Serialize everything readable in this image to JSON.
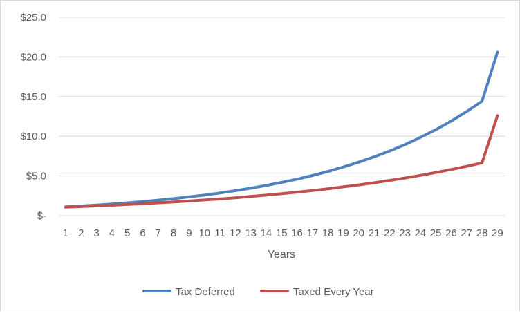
{
  "chart_data": {
    "type": "line",
    "xlabel": "Years",
    "ylabel": "",
    "title": "",
    "ylim": [
      0,
      25
    ],
    "yticks": [
      {
        "value": 0,
        "label": "$-"
      },
      {
        "value": 5,
        "label": "$5.0"
      },
      {
        "value": 10,
        "label": "$10.0"
      },
      {
        "value": 15,
        "label": "$15.0"
      },
      {
        "value": 20,
        "label": "$20.0"
      },
      {
        "value": 25,
        "label": "$25.0"
      }
    ],
    "x": [
      "1",
      "2",
      "3",
      "4",
      "5",
      "6",
      "7",
      "8",
      "9",
      "10",
      "11",
      "12",
      "13",
      "14",
      "15",
      "16",
      "17",
      "18",
      "19",
      "20",
      "21",
      "22",
      "23",
      "24",
      "25",
      "26",
      "27",
      "28",
      "29"
    ],
    "grid": "horizontal",
    "legend_position": "bottom",
    "series": [
      {
        "name": "Tax Deferred",
        "color": "#4f81bd",
        "values": [
          1.1,
          1.21,
          1.33,
          1.46,
          1.61,
          1.77,
          1.95,
          2.14,
          2.36,
          2.59,
          2.85,
          3.14,
          3.45,
          3.8,
          4.18,
          4.59,
          5.05,
          5.56,
          6.12,
          6.73,
          7.4,
          8.14,
          8.95,
          9.85,
          10.83,
          11.92,
          13.11,
          14.42,
          20.6
        ]
      },
      {
        "name": "Taxed Every Year",
        "color": "#c0504d",
        "values": [
          1.07,
          1.14,
          1.23,
          1.31,
          1.4,
          1.5,
          1.61,
          1.72,
          1.84,
          1.97,
          2.1,
          2.25,
          2.41,
          2.58,
          2.76,
          2.95,
          3.16,
          3.38,
          3.62,
          3.87,
          4.14,
          4.43,
          4.74,
          5.07,
          5.43,
          5.81,
          6.21,
          6.65,
          12.6
        ]
      }
    ]
  }
}
